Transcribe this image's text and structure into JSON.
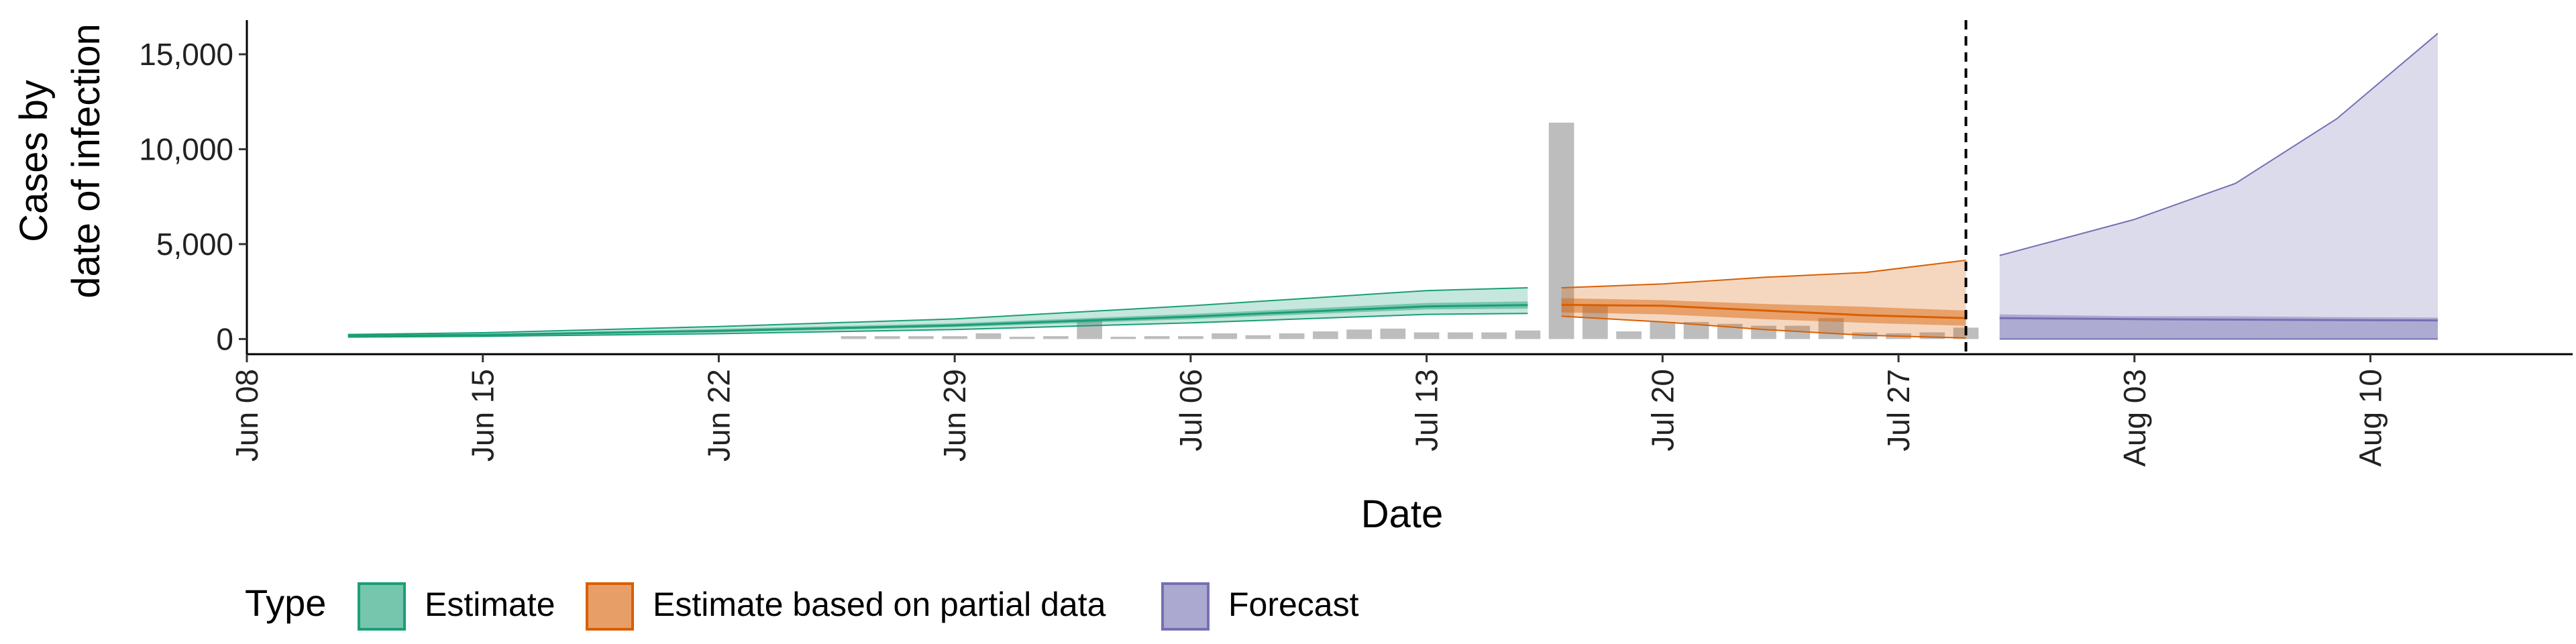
{
  "chart_data": {
    "type": "area",
    "xlabel": "Date",
    "ylabel": [
      "Cases by",
      "date of infection"
    ],
    "ylim": [
      -800,
      16800
    ],
    "yticks": [
      0,
      5000,
      10000,
      15000
    ],
    "ytick_labels": [
      "0",
      "5,000",
      "10,000",
      "15,000"
    ],
    "xticks": [
      "2020-06-08",
      "2020-06-15",
      "2020-06-22",
      "2020-06-29",
      "2020-07-06",
      "2020-07-13",
      "2020-07-20",
      "2020-07-27",
      "2020-08-03",
      "2020-08-10"
    ],
    "xtick_labels": [
      "Jun 08",
      "Jun 15",
      "Jun 22",
      "Jun 29",
      "Jul 06",
      "Jul 13",
      "Jul 20",
      "Jul 27",
      "Aug 03",
      "Aug 10"
    ],
    "xlim": [
      "2020-06-08",
      "2020-08-16"
    ],
    "forecast_date": "2020-07-29",
    "grid": false,
    "legend": {
      "title": "Type",
      "position": "bottom",
      "entries": [
        {
          "label": "Estimate",
          "fill": "#1b9e77",
          "color": "#1b9e77"
        },
        {
          "label": "Estimate based on partial data",
          "fill": "#d95f02",
          "color": "#d95f02"
        },
        {
          "label": "Forecast",
          "fill": "#7570b3",
          "color": "#7570b3"
        }
      ]
    },
    "reported_cases": {
      "color": "#bdbdbd",
      "dates": [
        "2020-06-26",
        "2020-06-27",
        "2020-06-28",
        "2020-06-29",
        "2020-06-30",
        "2020-07-01",
        "2020-07-02",
        "2020-07-03",
        "2020-07-04",
        "2020-07-05",
        "2020-07-06",
        "2020-07-07",
        "2020-07-08",
        "2020-07-09",
        "2020-07-10",
        "2020-07-11",
        "2020-07-12",
        "2020-07-13",
        "2020-07-14",
        "2020-07-15",
        "2020-07-16",
        "2020-07-17",
        "2020-07-18",
        "2020-07-19",
        "2020-07-20",
        "2020-07-21",
        "2020-07-22",
        "2020-07-23",
        "2020-07-24",
        "2020-07-25",
        "2020-07-26",
        "2020-07-27",
        "2020-07-28",
        "2020-07-29"
      ],
      "values": [
        150,
        150,
        150,
        150,
        300,
        120,
        150,
        1000,
        120,
        150,
        150,
        300,
        200,
        300,
        400,
        500,
        550,
        350,
        350,
        350,
        450,
        11400,
        1800,
        400,
        900,
        900,
        800,
        700,
        700,
        1100,
        350,
        300,
        350,
        600
      ]
    },
    "series": [
      {
        "name": "Estimate",
        "color": "#1b9e77",
        "dates": [
          "2020-06-11",
          "2020-06-15",
          "2020-06-22",
          "2020-06-29",
          "2020-07-06",
          "2020-07-13",
          "2020-07-16"
        ],
        "median": [
          170,
          220,
          430,
          720,
          1180,
          1720,
          1790
        ],
        "lower50": [
          140,
          170,
          350,
          620,
          1050,
          1560,
          1600
        ],
        "upper50": [
          200,
          270,
          530,
          830,
          1320,
          1900,
          1980
        ],
        "lower90": [
          100,
          140,
          280,
          500,
          850,
          1300,
          1350
        ],
        "upper90": [
          240,
          330,
          660,
          1060,
          1750,
          2550,
          2700
        ]
      },
      {
        "name": "Estimate based on partial data",
        "color": "#d95f02",
        "dates": [
          "2020-07-17",
          "2020-07-20",
          "2020-07-23",
          "2020-07-26",
          "2020-07-29"
        ],
        "median": [
          1800,
          1750,
          1500,
          1250,
          1100
        ],
        "lower50": [
          1400,
          1300,
          1050,
          850,
          700
        ],
        "upper50": [
          2150,
          2050,
          1850,
          1700,
          1500
        ],
        "lower90": [
          1200,
          900,
          500,
          200,
          50
        ],
        "upper90": [
          2700,
          2900,
          3250,
          3500,
          4150
        ]
      },
      {
        "name": "Forecast",
        "color": "#7570b3",
        "dates": [
          "2020-07-30",
          "2020-08-03",
          "2020-08-06",
          "2020-08-09",
          "2020-08-12"
        ],
        "median": [
          1100,
          1050,
          1020,
          1000,
          980
        ],
        "lower50": [
          0,
          0,
          0,
          0,
          0
        ],
        "upper50": [
          1300,
          1200,
          1200,
          1150,
          1130
        ],
        "lower90": [
          0,
          0,
          0,
          0,
          0
        ],
        "upper90": [
          4400,
          6300,
          8200,
          11600,
          16100
        ]
      }
    ]
  }
}
